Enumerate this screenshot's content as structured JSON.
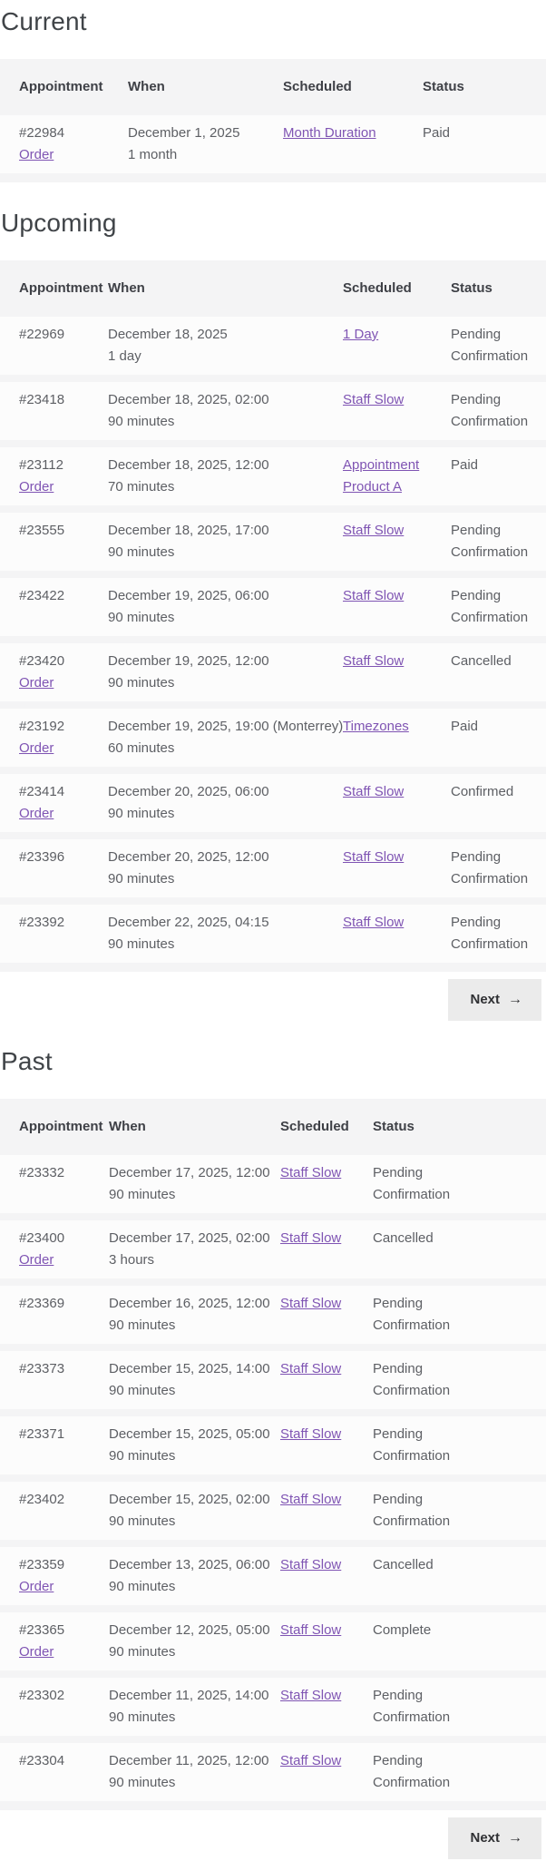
{
  "colors": {
    "accent_link": "#7f54b3",
    "table_background": "#f4f4f5",
    "row_background": "#fcfcfc",
    "body_text": "#5d5f64",
    "header_text": "#3e4046",
    "button_background": "#ebebeb"
  },
  "pager": {
    "next_label": "Next",
    "arrow_icon": "→"
  },
  "sections": [
    {
      "id": "current",
      "title": "Current",
      "columns": [
        "Appointment",
        "When",
        "Scheduled",
        "Status"
      ],
      "show_next": false,
      "rows": [
        {
          "appointment": "#22984",
          "order": "Order",
          "date": "December 1, 2025",
          "duration": "1 month",
          "scheduled": "Month Duration",
          "status": "Paid"
        }
      ]
    },
    {
      "id": "upcoming",
      "title": "Upcoming",
      "columns": [
        "Appointment",
        "When",
        "Scheduled",
        "Status"
      ],
      "show_next": true,
      "rows": [
        {
          "appointment": "#22969",
          "order": null,
          "date": "December 18, 2025",
          "duration": "1 day",
          "scheduled": "1 Day",
          "status": "Pending Confirmation"
        },
        {
          "appointment": "#23418",
          "order": null,
          "date": "December 18, 2025, 02:00",
          "duration": "90 minutes",
          "scheduled": "Staff Slow",
          "status": "Pending Confirmation"
        },
        {
          "appointment": "#23112",
          "order": "Order",
          "date": "December 18, 2025, 12:00",
          "duration": "70 minutes",
          "scheduled": "Appointment Product A",
          "status": "Paid"
        },
        {
          "appointment": "#23555",
          "order": null,
          "date": "December 18, 2025, 17:00",
          "duration": "90 minutes",
          "scheduled": "Staff Slow",
          "status": "Pending Confirmation"
        },
        {
          "appointment": "#23422",
          "order": null,
          "date": "December 19, 2025, 06:00",
          "duration": "90 minutes",
          "scheduled": "Staff Slow",
          "status": "Pending Confirmation"
        },
        {
          "appointment": "#23420",
          "order": "Order",
          "date": "December 19, 2025, 12:00",
          "duration": "90 minutes",
          "scheduled": "Staff Slow",
          "status": "Cancelled"
        },
        {
          "appointment": "#23192",
          "order": "Order",
          "date": "December 19, 2025, 19:00 (Monterrey)",
          "duration": "60 minutes",
          "scheduled": "Timezones",
          "status": "Paid"
        },
        {
          "appointment": "#23414",
          "order": "Order",
          "date": "December 20, 2025, 06:00",
          "duration": "90 minutes",
          "scheduled": "Staff Slow",
          "status": "Confirmed"
        },
        {
          "appointment": "#23396",
          "order": null,
          "date": "December 20, 2025, 12:00",
          "duration": "90 minutes",
          "scheduled": "Staff Slow",
          "status": "Pending Confirmation"
        },
        {
          "appointment": "#23392",
          "order": null,
          "date": "December 22, 2025, 04:15",
          "duration": "90 minutes",
          "scheduled": "Staff Slow",
          "status": "Pending Confirmation"
        }
      ]
    },
    {
      "id": "past",
      "title": "Past",
      "columns": [
        "Appointment",
        "When",
        "Scheduled",
        "Status"
      ],
      "show_next": true,
      "rows": [
        {
          "appointment": "#23332",
          "order": null,
          "date": "December 17, 2025, 12:00",
          "duration": "90 minutes",
          "scheduled": "Staff Slow",
          "status": "Pending Confirmation"
        },
        {
          "appointment": "#23400",
          "order": "Order",
          "date": "December 17, 2025, 02:00",
          "duration": "3 hours",
          "scheduled": "Staff Slow",
          "status": "Cancelled"
        },
        {
          "appointment": "#23369",
          "order": null,
          "date": "December 16, 2025, 12:00",
          "duration": "90 minutes",
          "scheduled": "Staff Slow",
          "status": "Pending Confirmation"
        },
        {
          "appointment": "#23373",
          "order": null,
          "date": "December 15, 2025, 14:00",
          "duration": "90 minutes",
          "scheduled": "Staff Slow",
          "status": "Pending Confirmation"
        },
        {
          "appointment": "#23371",
          "order": null,
          "date": "December 15, 2025, 05:00",
          "duration": "90 minutes",
          "scheduled": "Staff Slow",
          "status": "Pending Confirmation"
        },
        {
          "appointment": "#23402",
          "order": null,
          "date": "December 15, 2025, 02:00",
          "duration": "90 minutes",
          "scheduled": "Staff Slow",
          "status": "Pending Confirmation"
        },
        {
          "appointment": "#23359",
          "order": "Order",
          "date": "December 13, 2025, 06:00",
          "duration": "90 minutes",
          "scheduled": "Staff Slow",
          "status": "Cancelled"
        },
        {
          "appointment": "#23365",
          "order": "Order",
          "date": "December 12, 2025, 05:00",
          "duration": "90 minutes",
          "scheduled": "Staff Slow",
          "status": "Complete"
        },
        {
          "appointment": "#23302",
          "order": null,
          "date": "December 11, 2025, 14:00",
          "duration": "90 minutes",
          "scheduled": "Staff Slow",
          "status": "Pending Confirmation"
        },
        {
          "appointment": "#23304",
          "order": null,
          "date": "December 11, 2025, 12:00",
          "duration": "90 minutes",
          "scheduled": "Staff Slow",
          "status": "Pending Confirmation"
        }
      ]
    }
  ]
}
